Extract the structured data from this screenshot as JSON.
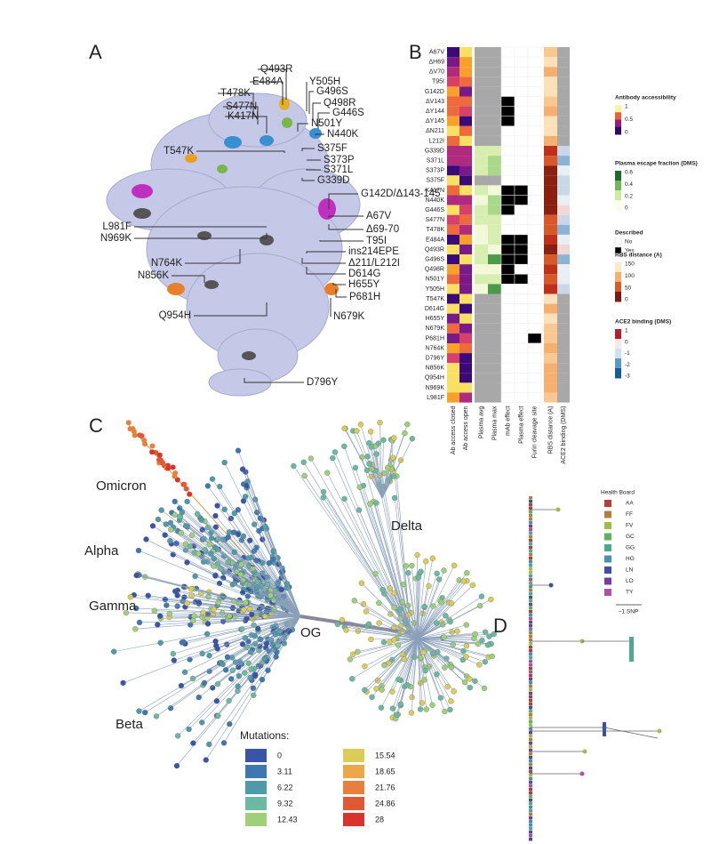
{
  "panel_labels": [
    "A",
    "B",
    "C",
    "D"
  ],
  "panel_a": {
    "mutations": [
      {
        "label": "Q493R",
        "color": "#e8b020"
      },
      {
        "label": "E484A",
        "color": "#e8b020"
      },
      {
        "label": "Y505H",
        "color": "#333333"
      },
      {
        "label": "G496S",
        "color": "#3a8fd0"
      },
      {
        "label": "Q498R",
        "color": "#3a8fd0"
      },
      {
        "label": "T478K",
        "color": "#333333"
      },
      {
        "label": "S477N",
        "color": "#333333"
      },
      {
        "label": "G446S",
        "color": "#3a8fd0"
      },
      {
        "label": "N501Y",
        "color": "#333333"
      },
      {
        "label": "K417N",
        "color": "#7ab648"
      },
      {
        "label": "N440K",
        "color": "#3a8fd0"
      },
      {
        "label": "T547K",
        "color": "#333333"
      },
      {
        "label": "S375F",
        "color": "#333333"
      },
      {
        "label": "S373P",
        "color": "#333333"
      },
      {
        "label": "S371L",
        "color": "#333333"
      },
      {
        "label": "G339D",
        "color": "#333333"
      },
      {
        "label": "G142D/Δ143-145",
        "color": "#c030c0"
      },
      {
        "label": "L981F",
        "color": "#333333"
      },
      {
        "label": "A67V",
        "color": "#333333"
      },
      {
        "label": "N969K",
        "color": "#333333"
      },
      {
        "label": "Δ69-70",
        "color": "#333333"
      },
      {
        "label": "T95I",
        "color": "#333333"
      },
      {
        "label": "ins214EPE",
        "color": "#333333"
      },
      {
        "label": "N764K",
        "color": "#333333"
      },
      {
        "label": "Δ211/L212I",
        "color": "#333333"
      },
      {
        "label": "D614G",
        "color": "#333333"
      },
      {
        "label": "N856K",
        "color": "#333333"
      },
      {
        "label": "H655Y",
        "color": "#333333"
      },
      {
        "label": "P681H",
        "color": "#e88a30"
      },
      {
        "label": "N679K",
        "color": "#e88a30"
      },
      {
        "label": "Q954H",
        "color": "#333333"
      },
      {
        "label": "D796Y",
        "color": "#333333"
      }
    ]
  },
  "panel_b": {
    "rows": [
      "A67V",
      "ΔH69",
      "ΔV70",
      "T95I",
      "G142D",
      "ΔV143",
      "ΔY144",
      "ΔY145",
      "ΔN211",
      "L212I",
      "G339D",
      "S371L",
      "S373P",
      "S375F",
      "K417N",
      "N440K",
      "G446S",
      "S477N",
      "T478K",
      "E484A",
      "Q493R",
      "G496S",
      "Q498R",
      "N501Y",
      "Y505H",
      "T547K",
      "D614G",
      "H655Y",
      "N679K",
      "P681H",
      "N764K",
      "D796Y",
      "N856K",
      "Q954H",
      "N969K",
      "L981F"
    ],
    "columns": [
      "Ab access closed",
      "Ab access open",
      "Plasma avg",
      "Plasma max",
      "mAb effect",
      "Plasma effect",
      "Furin cleavage site",
      "RBS distance (A)",
      "ACE2 binding (DMS)"
    ],
    "legends": [
      {
        "title": "Antibody accessibility",
        "ticks": [
          "1",
          "0.5",
          "0"
        ],
        "colors": [
          "#fcf4a4",
          "#e8603a",
          "#9b1a7c",
          "#2a0a6a"
        ]
      },
      {
        "title": "Plasma escape fraction (DMS)",
        "ticks": [
          "0.6",
          "0.4",
          "0.2",
          "0"
        ],
        "colors": [
          "#1b6b2a",
          "#6cb85a",
          "#cfe9a4",
          "#fafde8"
        ]
      },
      {
        "title": "RBS distance (A)",
        "ticks": [
          "150",
          "100",
          "50",
          "0"
        ],
        "colors": [
          "#fbe8c8",
          "#f5b070",
          "#d0602a",
          "#7a1a10"
        ]
      },
      {
        "title": "ACE2 binding (DMS)",
        "ticks": [
          "1",
          "0",
          "-1",
          "-2",
          "-3"
        ],
        "colors": [
          "#b02030",
          "#f4e8e8",
          "#d0e0ec",
          "#5c9ac8",
          "#1a5a9a"
        ]
      }
    ],
    "described": {
      "title": "Described",
      "items": [
        "No",
        "Yes"
      ]
    }
  },
  "panel_c": {
    "clades": [
      "Omicron",
      "Alpha",
      "Gamma",
      "Beta",
      "Delta"
    ],
    "root": "OG",
    "legend_title": "Mutations:",
    "legend": [
      {
        "label": "0",
        "color": "#3a55a8"
      },
      {
        "label": "3.11",
        "color": "#3f78b0"
      },
      {
        "label": "6.22",
        "color": "#4f9aa8"
      },
      {
        "label": "9.32",
        "color": "#6cb8a0"
      },
      {
        "label": "12.43",
        "color": "#9fcf78"
      },
      {
        "label": "15.54",
        "color": "#d9cc58"
      },
      {
        "label": "18.65",
        "color": "#eaa848"
      },
      {
        "label": "21.76",
        "color": "#e7803c"
      },
      {
        "label": "24.86",
        "color": "#df5a34"
      },
      {
        "label": "28",
        "color": "#d8332c"
      }
    ]
  },
  "panel_d": {
    "legend_title": "Health Board",
    "boards": [
      {
        "label": "AA",
        "color": "#b0403a"
      },
      {
        "label": "FF",
        "color": "#b08040"
      },
      {
        "label": "FV",
        "color": "#9cbc50"
      },
      {
        "label": "GC",
        "color": "#60b060"
      },
      {
        "label": "GG",
        "color": "#50a890"
      },
      {
        "label": "HG",
        "color": "#4890b0"
      },
      {
        "label": "LN",
        "color": "#4050a0"
      },
      {
        "label": "LO",
        "color": "#7040a0"
      },
      {
        "label": "TY",
        "color": "#b050a0"
      }
    ],
    "scale": "~1 SNP"
  }
}
